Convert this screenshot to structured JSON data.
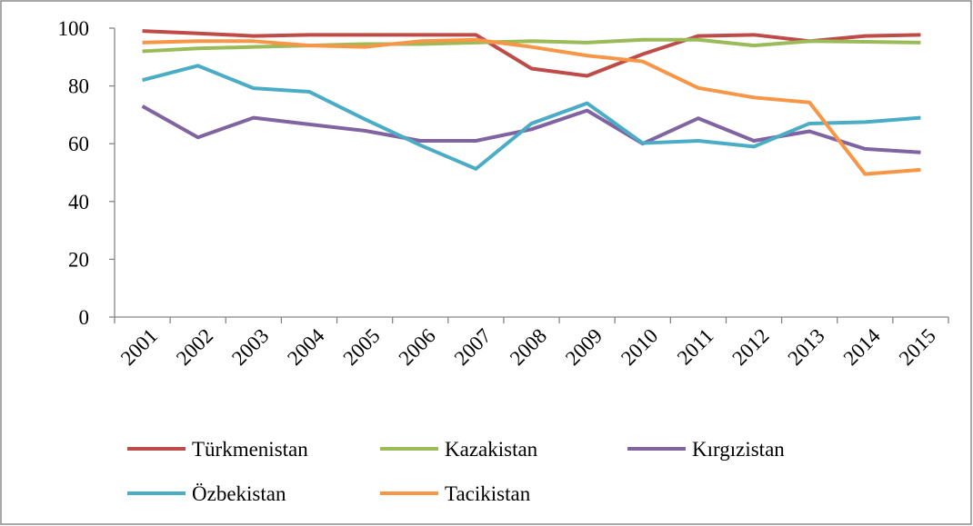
{
  "chart_data": {
    "type": "line",
    "categories": [
      "2001",
      "2002",
      "2003",
      "2004",
      "2005",
      "2006",
      "2007",
      "2008",
      "2009",
      "2010",
      "2011",
      "2012",
      "2013",
      "2014",
      "2015"
    ],
    "series": [
      {
        "name": "Türkmenistan",
        "color": "#be4b48",
        "values": [
          99,
          98.2,
          97.3,
          97.7,
          97.7,
          97.7,
          97.7,
          86,
          83.5,
          91,
          97.3,
          97.7,
          95.5,
          97.3,
          97.7
        ]
      },
      {
        "name": "Kazakistan",
        "color": "#9bbb59",
        "values": [
          92,
          93,
          93.5,
          94,
          94.5,
          94.5,
          95,
          95.5,
          95,
          96,
          96,
          94,
          95.5,
          95.3,
          95
        ]
      },
      {
        "name": "Kırgızistan",
        "color": "#8064a2",
        "values": [
          73,
          62.2,
          69,
          66.7,
          64.5,
          61,
          61,
          65,
          71.5,
          60,
          68.8,
          61,
          64.3,
          58.2,
          57
        ]
      },
      {
        "name": "Özbekistan",
        "color": "#4bacc6",
        "values": [
          82,
          87,
          79.2,
          78,
          68.5,
          59.5,
          51.3,
          67,
          74,
          60.2,
          61,
          59,
          67,
          67.5,
          69
        ]
      },
      {
        "name": "Tacikistan",
        "color": "#f79646",
        "values": [
          95,
          95.5,
          95.5,
          94,
          93.5,
          95.5,
          96,
          93.5,
          90.5,
          88.5,
          79.3,
          76,
          74.3,
          49.5,
          51
        ]
      }
    ],
    "ylim": [
      0,
      100
    ],
    "yticks": [
      0,
      20,
      40,
      60,
      80,
      100
    ],
    "grid": false
  }
}
